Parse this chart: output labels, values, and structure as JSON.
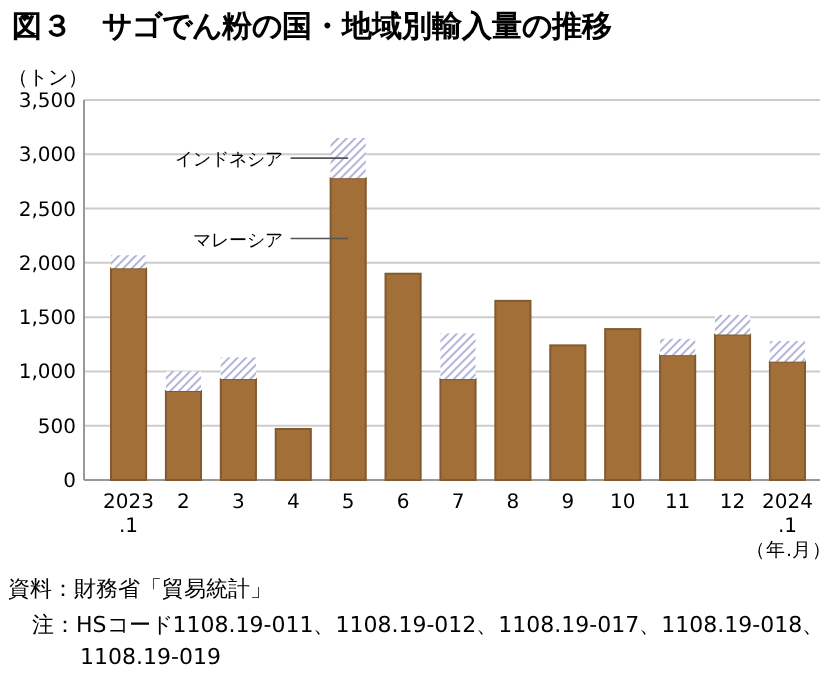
{
  "chart_data": {
    "type": "bar",
    "stacked": true,
    "title": "図３　サゴでん粉の国・地域別輸入量の推移",
    "ylabel": "（トン）",
    "xlabel": "（年.月）",
    "categories": [
      "2023\n.1",
      "2",
      "3",
      "4",
      "5",
      "6",
      "7",
      "8",
      "9",
      "10",
      "11",
      "12",
      "2024\n.1"
    ],
    "series": [
      {
        "name": "マレーシア",
        "color": "#a26f38",
        "values": [
          1950,
          820,
          930,
          470,
          2780,
          1900,
          930,
          1650,
          1240,
          1390,
          1150,
          1340,
          1090
        ]
      },
      {
        "name": "インドネシア",
        "color": "#a9acd6",
        "values": [
          120,
          180,
          200,
          null,
          370,
          null,
          420,
          null,
          null,
          null,
          150,
          180,
          190
        ]
      }
    ],
    "ylim": [
      0,
      3500
    ],
    "yticks": [
      0,
      {
        "value": 500,
        "label": "500"
      },
      {
        "value": 1000,
        "label": "1,000"
      },
      {
        "value": 1500,
        "label": "1,500"
      },
      {
        "value": 2000,
        "label": "2,000"
      },
      {
        "value": 2500,
        "label": "2,500"
      },
      {
        "value": 3000,
        "label": "3,000"
      },
      {
        "value": 3500,
        "label": "3,500"
      }
    ],
    "grid": "y",
    "annotations": [
      "資料：財務省「貿易統計」",
      "注：HSコード1108.19-011、1108.19-012、1108.19-017、1108.19-018、\n1108.19-019"
    ]
  }
}
